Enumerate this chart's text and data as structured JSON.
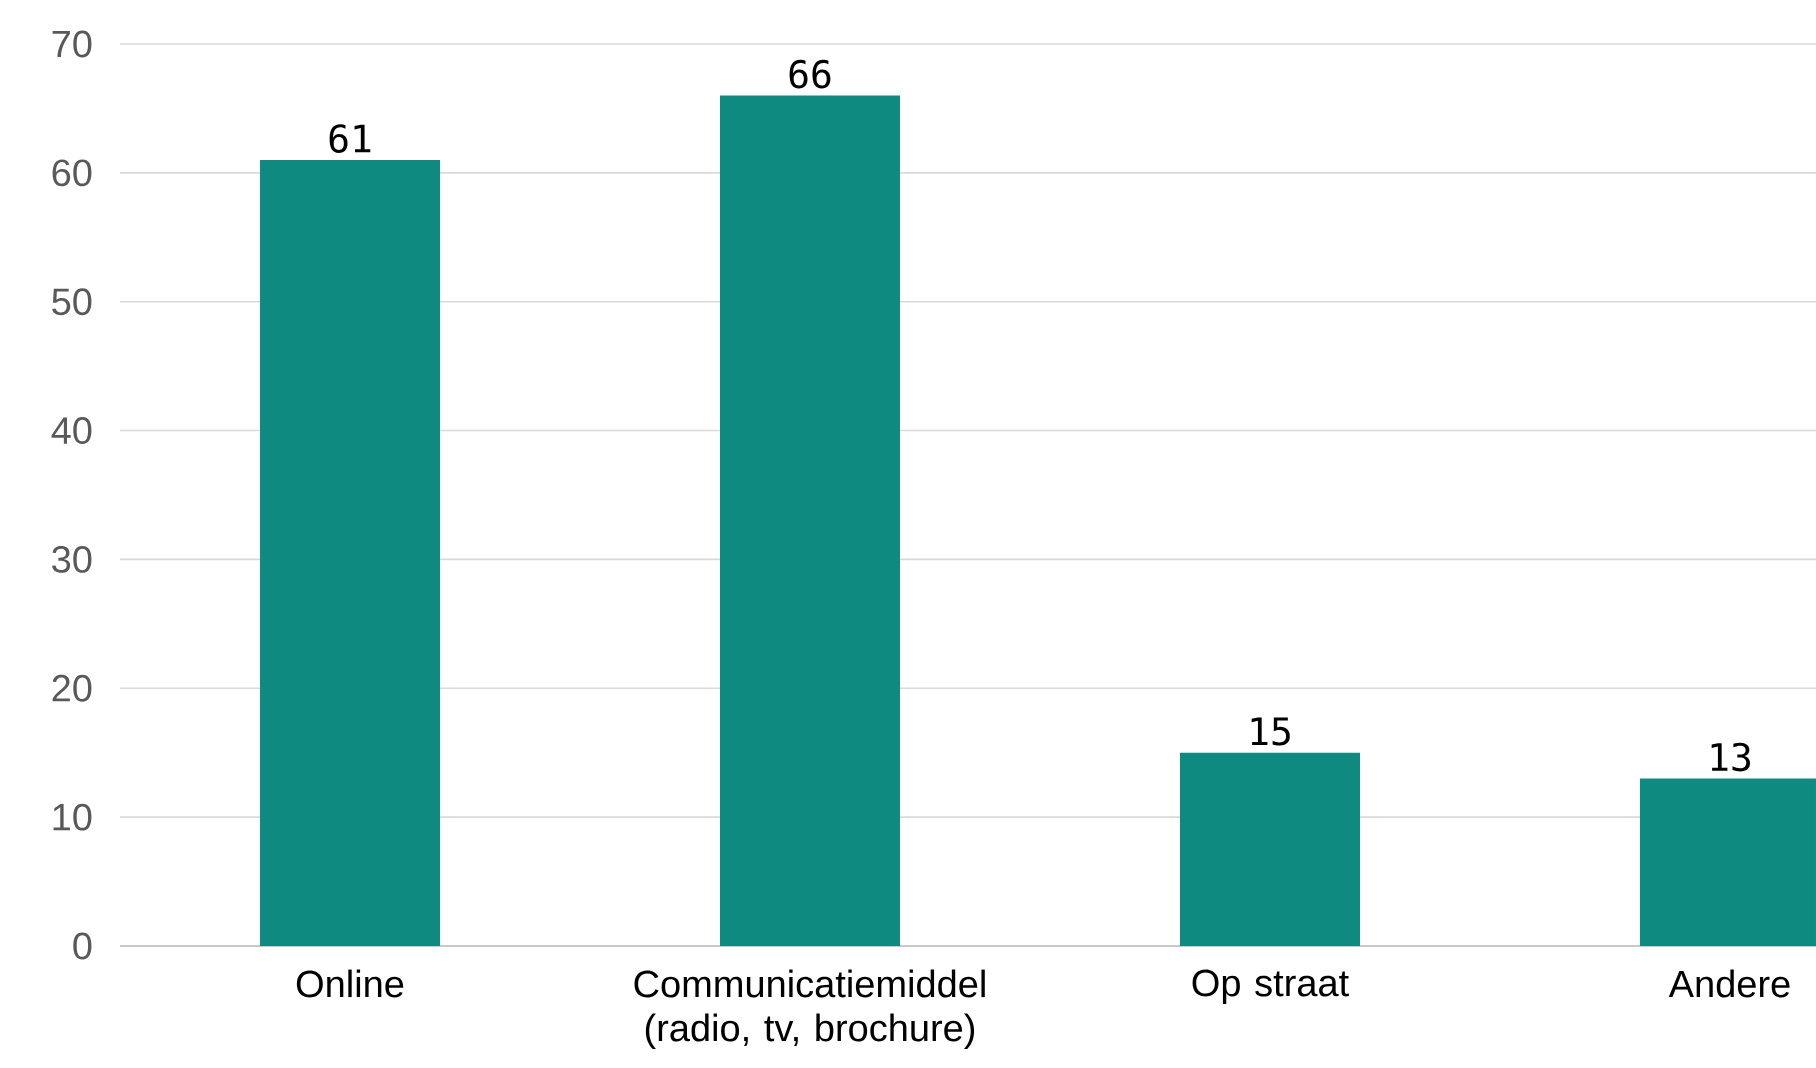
{
  "chart_data": {
    "type": "bar",
    "categories": [
      "Online",
      "Communicatiemiddel (radio, tv, brochure)",
      "Op straat",
      "Andere"
    ],
    "values": [
      61,
      66,
      15,
      13
    ],
    "color": "#0e8a80",
    "ylim": [
      0,
      70
    ],
    "yticks": [
      0,
      10,
      20,
      30,
      40,
      50,
      60,
      70
    ],
    "grid": "y",
    "data_labels": true
  }
}
